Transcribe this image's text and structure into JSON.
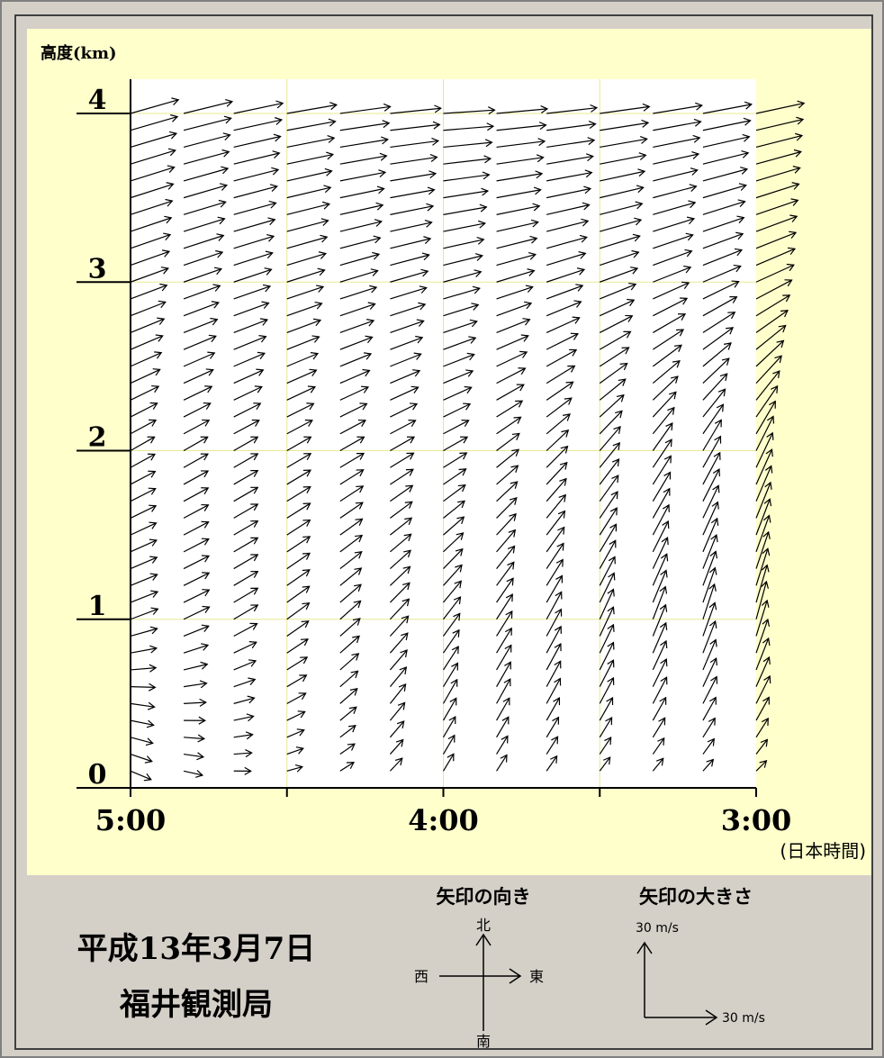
{
  "chart_data": {
    "type": "wind_profile_vector",
    "ylabel": "高度(km)",
    "y_ticks": [
      "0",
      "1",
      "2",
      "3",
      "4"
    ],
    "ylim": [
      0,
      4
    ],
    "x_ticks": [
      "5:00",
      "4:00",
      "3:00"
    ],
    "x_unit": "(日本時間)",
    "time_direction": "right-to-left (newest on left)",
    "columns_time_hours": [
      5.0,
      4.83,
      4.67,
      4.5,
      4.33,
      4.17,
      4.0,
      3.83,
      3.67,
      3.5,
      3.33,
      3.17,
      3.0
    ],
    "profiles": [
      {
        "time": "5:00",
        "layers": [
          {
            "h_km": 0.1,
            "u": 12,
            "v": -5
          },
          {
            "h_km": 0.5,
            "u": 14,
            "v": -2
          },
          {
            "h_km": 1.0,
            "u": 16,
            "v": 6
          },
          {
            "h_km": 2.0,
            "u": 14,
            "v": 8
          },
          {
            "h_km": 3.0,
            "u": 22,
            "v": 8
          },
          {
            "h_km": 4.0,
            "u": 28,
            "v": 8
          }
        ]
      },
      {
        "time": "4:00",
        "layers": [
          {
            "h_km": 0.1,
            "u": 6,
            "v": 10
          },
          {
            "h_km": 0.5,
            "u": 8,
            "v": 14
          },
          {
            "h_km": 1.0,
            "u": 10,
            "v": 13
          },
          {
            "h_km": 2.0,
            "u": 14,
            "v": 8
          },
          {
            "h_km": 3.0,
            "u": 22,
            "v": 6
          },
          {
            "h_km": 4.0,
            "u": 30,
            "v": 2
          }
        ]
      },
      {
        "time": "3:00",
        "layers": [
          {
            "h_km": 0.1,
            "u": 6,
            "v": 6
          },
          {
            "h_km": 0.5,
            "u": 8,
            "v": 16
          },
          {
            "h_km": 1.0,
            "u": 6,
            "v": 22
          },
          {
            "h_km": 2.0,
            "u": 10,
            "v": 20
          },
          {
            "h_km": 3.0,
            "u": 22,
            "v": 10
          },
          {
            "h_km": 4.0,
            "u": 28,
            "v": 6
          }
        ]
      }
    ]
  },
  "footer": {
    "date": "平成13年3月7日",
    "station": "福井観測局",
    "direction_title": "矢印の向き",
    "north": "北",
    "south": "南",
    "east": "東",
    "west": "西",
    "size_title": "矢印の大きさ",
    "scale_v": "30 m/s",
    "scale_h": "30 m/s"
  },
  "colors": {
    "panel_bg": "#ffffcc",
    "plot_bg": "#ffffff",
    "grid": "#e8e890",
    "footer_bg": "#d4d0c8",
    "arrow": "#000000"
  }
}
